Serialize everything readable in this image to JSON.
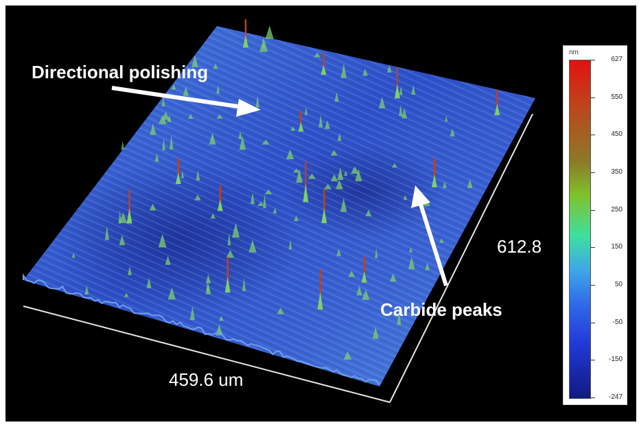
{
  "annotations": {
    "polishing": "Directional polishing",
    "carbide": "Carbide peaks"
  },
  "axes": {
    "x_label": "459.6 um",
    "y_label": "612.8"
  },
  "colorbar": {
    "unit": "nm",
    "ticks": [
      "627",
      "550",
      "450",
      "350",
      "250",
      "150",
      "50",
      "-50",
      "-150",
      "-247"
    ]
  },
  "colors": {
    "background": "#000000",
    "surface_base": "#3b63d6",
    "surface_dark": "#1c2f9a",
    "peak_green": "#7ed06a",
    "peak_red": "#c2401a",
    "label": "#ffffff"
  }
}
